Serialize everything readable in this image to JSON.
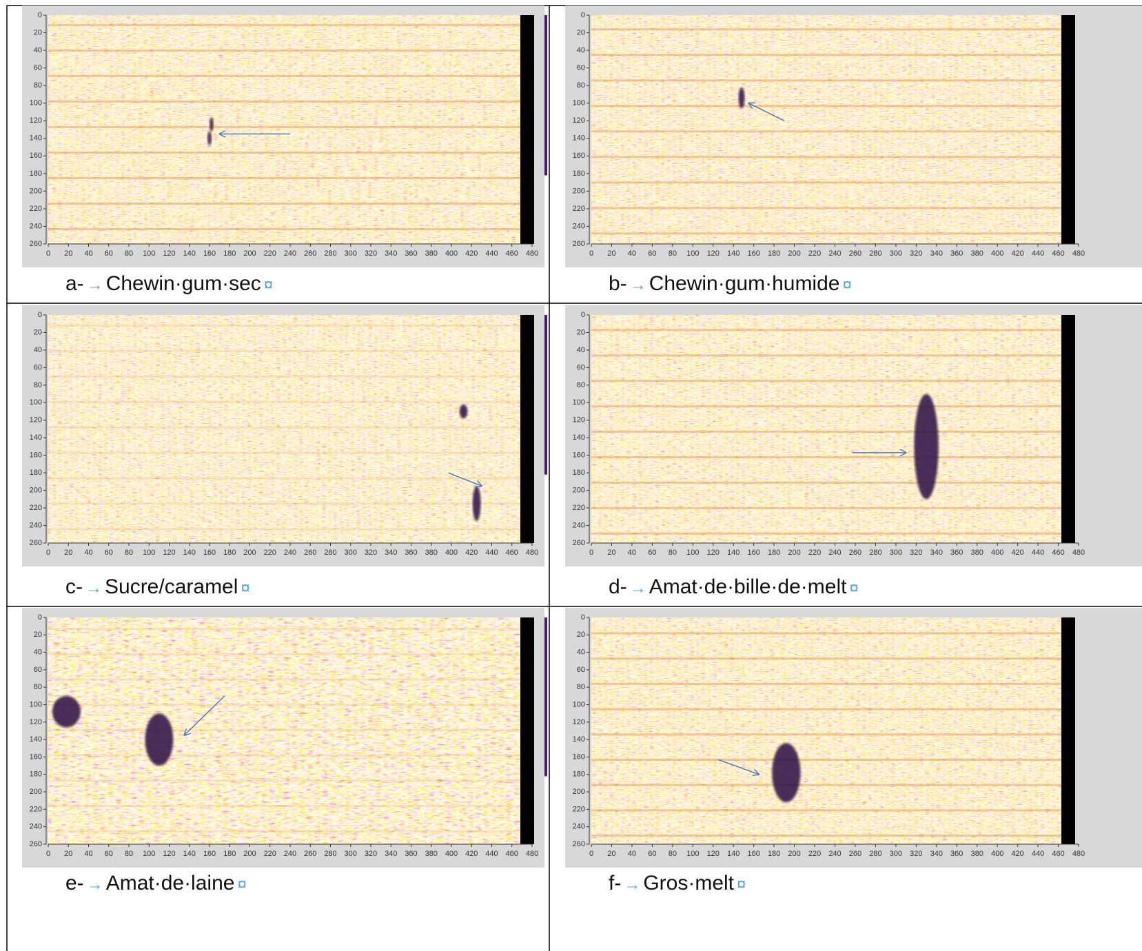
{
  "axes": {
    "yticks": [
      0,
      20,
      40,
      60,
      80,
      100,
      120,
      140,
      160,
      180,
      200,
      220,
      240,
      260
    ],
    "xticks": [
      0,
      20,
      40,
      60,
      80,
      100,
      120,
      140,
      160,
      180,
      200,
      220,
      240,
      260,
      280,
      300,
      320,
      340,
      360,
      380,
      400,
      420,
      440,
      460,
      480
    ]
  },
  "marks": {
    "tab": "→",
    "cell": "¤"
  },
  "panels": [
    {
      "letter": "a-",
      "text": "Chewin·gum·sec"
    },
    {
      "letter": "b-",
      "text": "Chewin·gum·humide"
    },
    {
      "letter": "c-",
      "text": "Sucre/caramel"
    },
    {
      "letter": "d-",
      "text": "Amat·de·bille·de·melt"
    },
    {
      "letter": "e-",
      "text": "Amat·de·laine"
    },
    {
      "letter": "f-",
      "text": "Gros·melt"
    }
  ]
}
